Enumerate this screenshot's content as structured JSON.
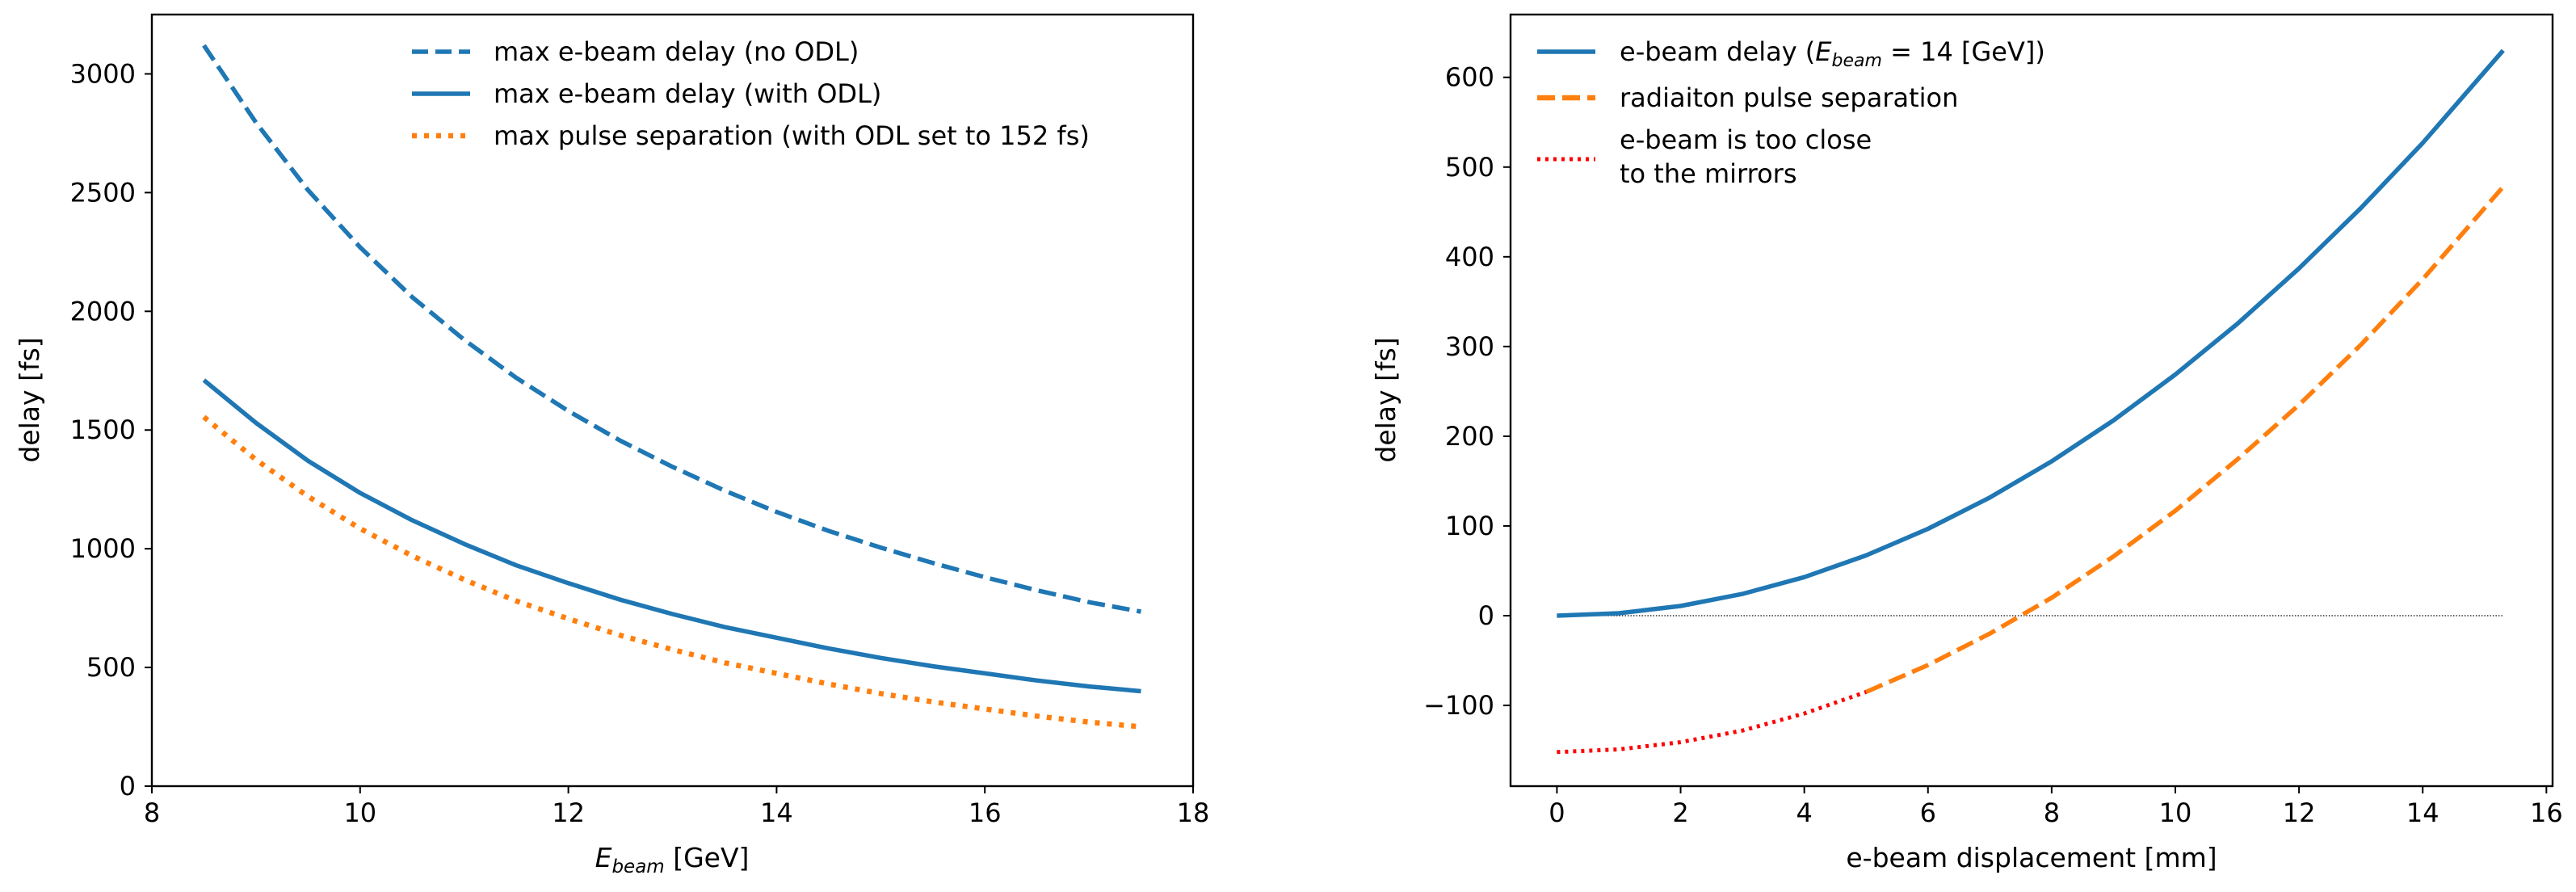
{
  "chart_data": [
    {
      "type": "line",
      "xlabel_main": "E",
      "xlabel_sub": "beam",
      "xlabel_rest": " [GeV]",
      "ylabel": "delay [fs]",
      "xlim": [
        8,
        18
      ],
      "ylim": [
        0,
        3250
      ],
      "xticks": [
        8,
        10,
        12,
        14,
        16,
        18
      ],
      "yticks": [
        0,
        500,
        1000,
        1500,
        2000,
        2500,
        3000
      ],
      "legend_position": "upper-center",
      "series": [
        {
          "name": "max e-beam delay (no ODL)",
          "style": "dashed",
          "color": "#1f77b4",
          "x": [
            8.5,
            9,
            9.5,
            10,
            10.5,
            11,
            11.5,
            12,
            12.5,
            13,
            13.5,
            14,
            14.5,
            15,
            15.5,
            16,
            16.5,
            17,
            17.5
          ],
          "y": [
            3120,
            2795,
            2510,
            2270,
            2060,
            1880,
            1720,
            1580,
            1455,
            1345,
            1245,
            1155,
            1075,
            1005,
            940,
            880,
            825,
            775,
            735
          ]
        },
        {
          "name": "max e-beam delay (with ODL)",
          "style": "solid",
          "color": "#1f77b4",
          "x": [
            8.5,
            9,
            9.5,
            10,
            10.5,
            11,
            11.5,
            12,
            12.5,
            13,
            13.5,
            14,
            14.5,
            15,
            15.5,
            16,
            16.5,
            17,
            17.5
          ],
          "y": [
            1710,
            1530,
            1370,
            1235,
            1120,
            1020,
            930,
            855,
            785,
            725,
            670,
            625,
            580,
            540,
            505,
            475,
            445,
            420,
            400
          ]
        },
        {
          "name": "max pulse separation (with ODL set to 152 fs)",
          "style": "dotted",
          "color": "#ff7f0e",
          "x": [
            8.5,
            9,
            9.5,
            10,
            10.5,
            11,
            11.5,
            12,
            12.5,
            13,
            13.5,
            14,
            14.5,
            15,
            15.5,
            16,
            16.5,
            17,
            17.5
          ],
          "y": [
            1555,
            1375,
            1220,
            1085,
            970,
            870,
            780,
            705,
            635,
            575,
            520,
            475,
            430,
            390,
            355,
            325,
            295,
            270,
            250
          ]
        }
      ]
    },
    {
      "type": "line",
      "xlabel": "e-beam displacement [mm]",
      "ylabel": "delay [fs]",
      "xlim": [
        -0.75,
        16.1
      ],
      "ylim": [
        -190,
        670
      ],
      "xticks": [
        0,
        2,
        4,
        6,
        8,
        10,
        12,
        14,
        16
      ],
      "ytick_values": [
        -100,
        0,
        100,
        200,
        300,
        400,
        500,
        600
      ],
      "ytick_labels": [
        "−100",
        "0",
        "100",
        "200",
        "300",
        "400",
        "500",
        "600"
      ],
      "legend_position": "upper-left",
      "legend_entries": [
        {
          "pre": "e-beam delay (",
          "math_main": "E",
          "math_sub": "beam",
          "math_rest": " = 14 [GeV])"
        },
        {
          "text": "radiaiton pulse separation"
        },
        {
          "line1": "e-beam is too close",
          "line2": "to the mirrors"
        }
      ],
      "reference_line_y": 0,
      "series": [
        {
          "name": "e-beam delay",
          "style": "solid",
          "color": "#1f77b4",
          "x": [
            0,
            1,
            2,
            3,
            4,
            5,
            6,
            7,
            8,
            9,
            10,
            11,
            12,
            13,
            14,
            15.3
          ],
          "y": [
            0,
            2.7,
            10.8,
            24.2,
            43.0,
            67.2,
            96.8,
            131.7,
            172.0,
            217.7,
            268.8,
            325.2,
            387.1,
            454.3,
            526.8,
            630
          ]
        },
        {
          "name": "radiaiton pulse separation",
          "style": "dashed",
          "color": "#ff7f0e",
          "x": [
            5,
            6,
            7,
            8,
            9,
            10,
            11,
            12,
            13,
            14,
            15.3
          ],
          "y": [
            -85,
            -55,
            -20,
            20,
            66,
            117,
            174,
            235,
            302,
            375,
            478
          ]
        },
        {
          "name": "e-beam is too close to the mirrors",
          "style": "dotted",
          "color": "#ff0000",
          "x": [
            0,
            1,
            2,
            3,
            4,
            5
          ],
          "y": [
            -152,
            -149,
            -141,
            -128,
            -109,
            -85
          ]
        }
      ]
    }
  ]
}
